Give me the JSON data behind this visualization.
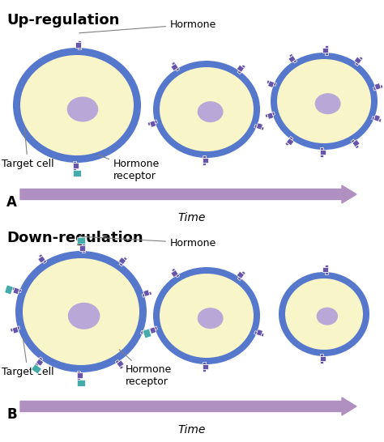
{
  "bg_color": "#ffffff",
  "cell_membrane_color": "#5577cc",
  "cell_inner_color": "#f8f5c8",
  "nucleus_color": "#b8a8d8",
  "receptor_color": "#6655aa",
  "hormone_color": "#44aaaa",
  "arrow_color": "#b090c0",
  "title_up": "Up-regulation",
  "title_down": "Down-regulation",
  "label_a": "A",
  "label_b": "B",
  "time_label": "Time",
  "label_hormone": "Hormone",
  "label_target": "Target cell",
  "label_receptor": "Hormone\nreceptor",
  "figw": 4.74,
  "figh": 5.46,
  "dpi": 100
}
